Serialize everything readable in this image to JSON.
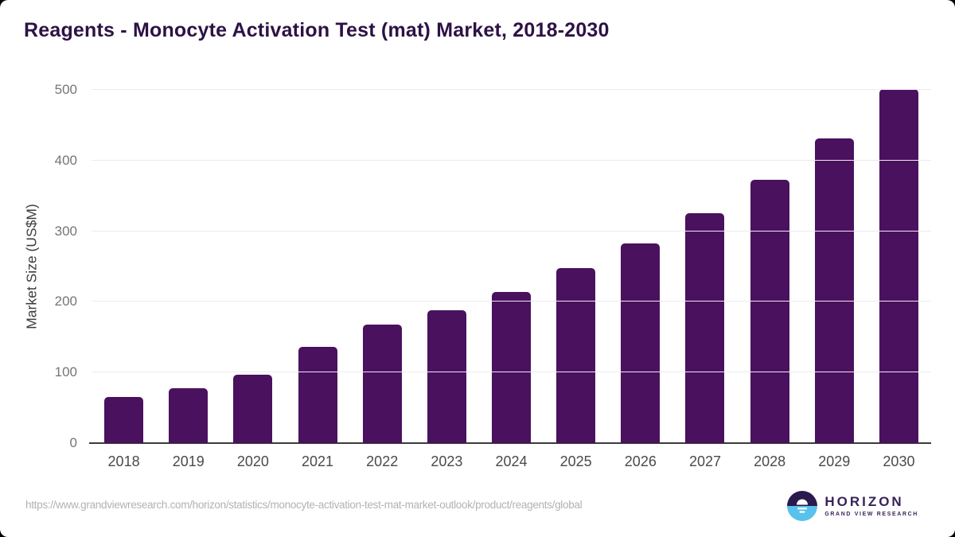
{
  "page": {
    "title": "Reagents - Monocyte Activation Test (mat) Market, 2018-2030",
    "source_url": "https://www.grandviewresearch.com/horizon/statistics/monocyte-activation-test-mat-market-outlook/product/reagents/global"
  },
  "branding": {
    "logo_icon": "horizon-sun-circle-icon",
    "logo_name": "HORIZON",
    "logo_subtitle": "GRAND VIEW RESEARCH"
  },
  "chart_data": {
    "type": "bar",
    "title": "Reagents - Monocyte Activation Test (mat) Market, 2018-2030",
    "categories": [
      "2018",
      "2019",
      "2020",
      "2021",
      "2022",
      "2023",
      "2024",
      "2025",
      "2026",
      "2027",
      "2028",
      "2029",
      "2030"
    ],
    "values": [
      65,
      78,
      97,
      136,
      168,
      188,
      214,
      248,
      283,
      325,
      373,
      431,
      501
    ],
    "xlabel": "",
    "ylabel": "Market Size (US$M)",
    "ylim": [
      0,
      500
    ],
    "yticks": [
      0,
      100,
      200,
      300,
      400,
      500
    ],
    "grid": true,
    "legend": false,
    "bar_color": "#4a115e"
  },
  "colors": {
    "title": "#2d1245",
    "axis_label": "#3d3d3d",
    "ytick": "#757575",
    "xtick": "#4a4a4a",
    "gridline": "#ebebee",
    "axis_line": "#3b3b3b",
    "url": "#b2b2b2",
    "logo_text": "#372359",
    "logo_dark": "#2b1a4e",
    "logo_blue": "#58c1ec"
  }
}
